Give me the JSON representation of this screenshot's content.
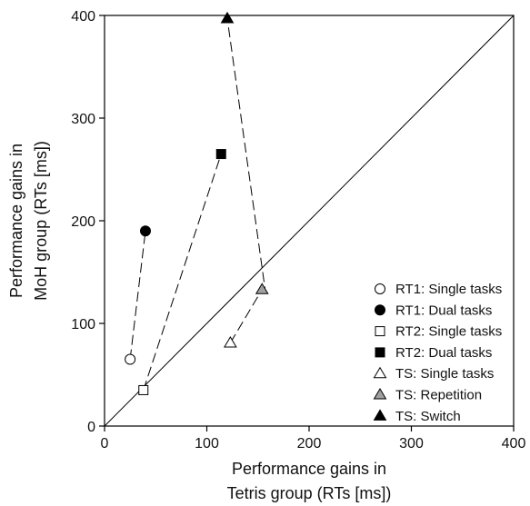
{
  "chart_data": {
    "type": "scatter",
    "xlabel_lines": [
      "Performance gains in",
      "Tetris group (RTs [ms])"
    ],
    "ylabel_lines": [
      "Performance gains in",
      "MoH group (RTs [ms])"
    ],
    "xlim": [
      0,
      400
    ],
    "ylim": [
      0,
      400
    ],
    "xticks": [
      0,
      100,
      200,
      300,
      400
    ],
    "yticks": [
      0,
      100,
      200,
      300,
      400
    ],
    "diagonal_reference_line": true,
    "grid": false,
    "legend_position": "bottom-right",
    "series": [
      {
        "name": "RT1: Single tasks",
        "marker": "circle",
        "fill": "#ffffff",
        "x": 25,
        "y": 65
      },
      {
        "name": "RT1: Dual tasks",
        "marker": "circle",
        "fill": "#000000",
        "x": 40,
        "y": 190
      },
      {
        "name": "RT2: Single tasks",
        "marker": "square",
        "fill": "#ffffff",
        "x": 38,
        "y": 35
      },
      {
        "name": "RT2: Dual tasks",
        "marker": "square",
        "fill": "#000000",
        "x": 114,
        "y": 265
      },
      {
        "name": "TS: Single tasks",
        "marker": "triangle",
        "fill": "#ffffff",
        "x": 123,
        "y": 81
      },
      {
        "name": "TS: Repetition",
        "marker": "triangle",
        "fill": "#a0a0a0",
        "x": 154,
        "y": 133
      },
      {
        "name": "TS: Switch",
        "marker": "triangle",
        "fill": "#000000",
        "x": 120,
        "y": 397
      }
    ],
    "dashed_connections": [
      [
        [
          25,
          65
        ],
        [
          40,
          190
        ]
      ],
      [
        [
          38,
          35
        ],
        [
          114,
          265
        ]
      ],
      [
        [
          123,
          81
        ],
        [
          154,
          133
        ],
        [
          157,
          133
        ],
        [
          120,
          397
        ]
      ]
    ]
  }
}
